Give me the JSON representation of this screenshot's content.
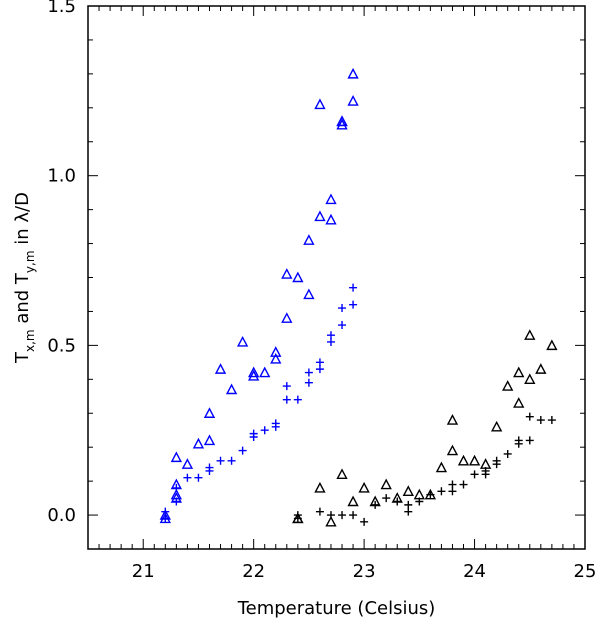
{
  "chart_data": {
    "type": "scatter",
    "title": "",
    "xlabel": "Temperature (Celsius)",
    "ylabel": {
      "parts": [
        "T",
        "x,m",
        " and T",
        "y,m",
        " in λ/D"
      ]
    },
    "xlim": [
      20.5,
      25.0
    ],
    "ylim": [
      -0.1,
      1.5
    ],
    "x_ticks": [
      21,
      22,
      23,
      24,
      25
    ],
    "x_tick_labels": [
      "21",
      "22",
      "23",
      "24",
      "25"
    ],
    "y_ticks": [
      0.0,
      0.5,
      1.0,
      1.5
    ],
    "y_tick_labels": [
      "0.0",
      "0.5",
      "1.0",
      "1.5"
    ],
    "x_minor_step": 0.1,
    "y_minor_step": 0.1,
    "colors": {
      "blue": "#0000ff",
      "black": "#000000"
    },
    "series": [
      {
        "name": "blue triangles",
        "marker": "triangle",
        "color": "#0000ff",
        "x": [
          21.2,
          21.2,
          21.3,
          21.3,
          21.3,
          21.3,
          21.4,
          21.5,
          21.6,
          21.6,
          21.7,
          21.8,
          21.9,
          22.0,
          22.0,
          22.1,
          22.2,
          22.2,
          22.3,
          22.3,
          22.4,
          22.5,
          22.5,
          22.6,
          22.6,
          22.7,
          22.7,
          22.8,
          22.8,
          22.8,
          22.9,
          22.9
        ],
        "y": [
          0.0,
          -0.01,
          0.17,
          0.09,
          0.05,
          0.06,
          0.15,
          0.21,
          0.22,
          0.3,
          0.43,
          0.37,
          0.51,
          0.41,
          0.42,
          0.42,
          0.48,
          0.46,
          0.71,
          0.58,
          0.7,
          0.65,
          0.81,
          0.88,
          1.21,
          0.93,
          0.87,
          1.16,
          1.15,
          1.16,
          1.3,
          1.22
        ]
      },
      {
        "name": "blue plus",
        "marker": "plus",
        "color": "#0000ff",
        "x": [
          21.2,
          21.2,
          21.3,
          21.3,
          21.4,
          21.5,
          21.6,
          21.6,
          21.7,
          21.8,
          21.9,
          22.0,
          22.0,
          22.1,
          22.2,
          22.2,
          22.3,
          22.3,
          22.4,
          22.5,
          22.5,
          22.6,
          22.6,
          22.7,
          22.7,
          22.8,
          22.8,
          22.9,
          22.9
        ],
        "y": [
          0.01,
          -0.01,
          0.04,
          0.08,
          0.11,
          0.11,
          0.13,
          0.14,
          0.16,
          0.16,
          0.19,
          0.23,
          0.24,
          0.25,
          0.27,
          0.26,
          0.34,
          0.38,
          0.34,
          0.39,
          0.42,
          0.45,
          0.43,
          0.51,
          0.53,
          0.56,
          0.61,
          0.62,
          0.67
        ]
      },
      {
        "name": "black triangles",
        "marker": "triangle",
        "color": "#000000",
        "x": [
          22.4,
          22.4,
          22.6,
          22.7,
          22.8,
          22.9,
          23.0,
          23.1,
          23.2,
          23.3,
          23.4,
          23.5,
          23.6,
          23.7,
          23.8,
          23.8,
          23.9,
          24.0,
          24.1,
          24.2,
          24.3,
          24.4,
          24.4,
          24.5,
          24.5,
          24.6,
          24.7
        ],
        "y": [
          -0.01,
          -0.01,
          0.08,
          -0.02,
          0.12,
          0.04,
          0.08,
          0.04,
          0.09,
          0.05,
          0.07,
          0.06,
          0.06,
          0.14,
          0.19,
          0.28,
          0.16,
          0.16,
          0.15,
          0.26,
          0.38,
          0.42,
          0.33,
          0.4,
          0.53,
          0.43,
          0.5
        ]
      },
      {
        "name": "black plus",
        "marker": "plus",
        "color": "#000000",
        "x": [
          22.4,
          22.4,
          22.6,
          22.7,
          22.8,
          22.9,
          23.0,
          23.1,
          23.2,
          23.3,
          23.4,
          23.4,
          23.5,
          23.6,
          23.7,
          23.8,
          23.8,
          23.9,
          24.0,
          24.1,
          24.1,
          24.2,
          24.2,
          24.3,
          24.4,
          24.4,
          24.5,
          24.5,
          24.6,
          24.7
        ],
        "y": [
          -0.01,
          0.0,
          0.01,
          0.0,
          0.0,
          0.0,
          -0.02,
          0.03,
          0.05,
          0.04,
          0.03,
          0.01,
          0.04,
          0.06,
          0.07,
          0.07,
          0.09,
          0.09,
          0.12,
          0.12,
          0.13,
          0.15,
          0.16,
          0.18,
          0.21,
          0.22,
          0.22,
          0.29,
          0.28,
          0.28
        ]
      }
    ]
  }
}
